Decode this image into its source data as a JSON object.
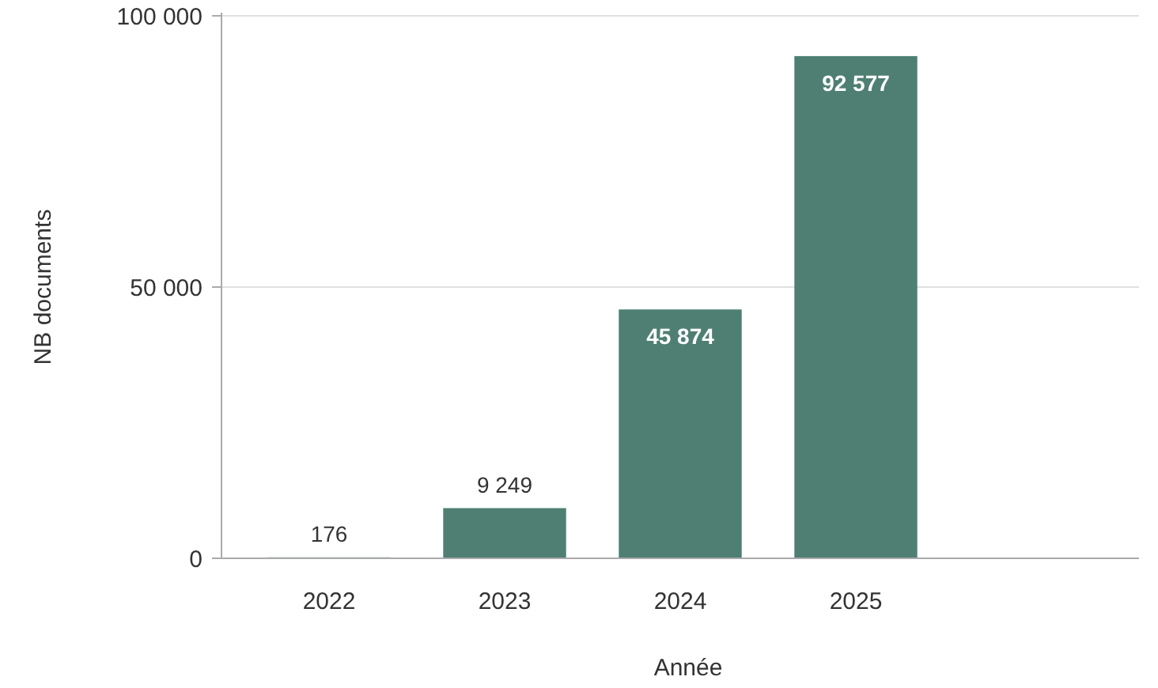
{
  "chart_data": {
    "type": "bar",
    "xlabel": "Année",
    "ylabel": "NB documents",
    "categories": [
      "2022",
      "2023",
      "2024",
      "2025"
    ],
    "values": [
      176,
      9249,
      45874,
      92577
    ],
    "value_labels": [
      "176",
      "9 249",
      "45 874",
      "92 577"
    ],
    "color": "#4e7f72",
    "ylim": [
      0,
      100000
    ],
    "yticks": [
      {
        "value": 0,
        "label": "0"
      },
      {
        "value": 50000,
        "label": "50 000"
      },
      {
        "value": 100000,
        "label": "100 000"
      }
    ],
    "grid": "y"
  }
}
